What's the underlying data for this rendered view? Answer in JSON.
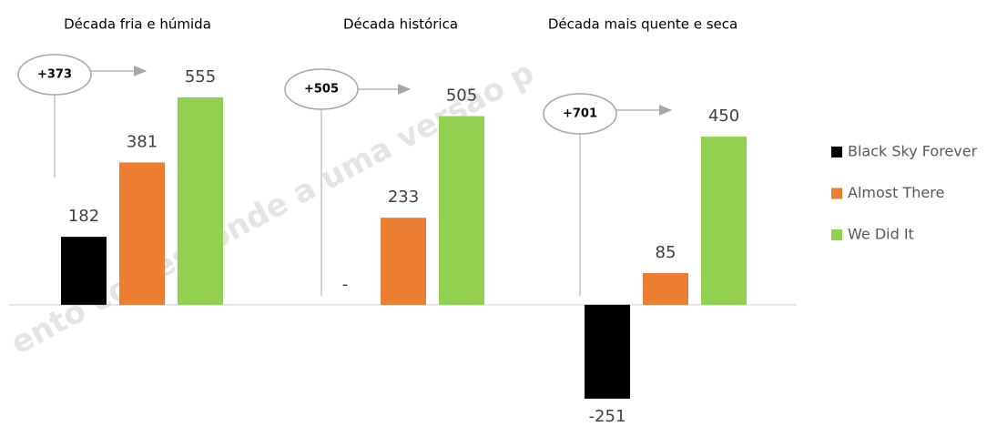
{
  "chart_data": {
    "type": "bar",
    "watermark": "ento corresponde a uma versão p",
    "categories": [
      "Década fria e húmida",
      "Década histórica",
      "Década mais quente e seca"
    ],
    "series": [
      {
        "name": "Black Sky Forever",
        "color": "#000000",
        "values": [
          182,
          0,
          -251
        ],
        "value_labels": [
          "182",
          "-",
          "-251"
        ]
      },
      {
        "name": "Almost There",
        "color": "#ED7D31",
        "values": [
          381,
          233,
          85
        ]
      },
      {
        "name": "We Did It",
        "color": "#92D050",
        "values": [
          555,
          505,
          450
        ]
      }
    ],
    "annotations": [
      "+373",
      "+505",
      "+701"
    ],
    "ylim": [
      -300,
      650
    ],
    "legend": "right"
  }
}
